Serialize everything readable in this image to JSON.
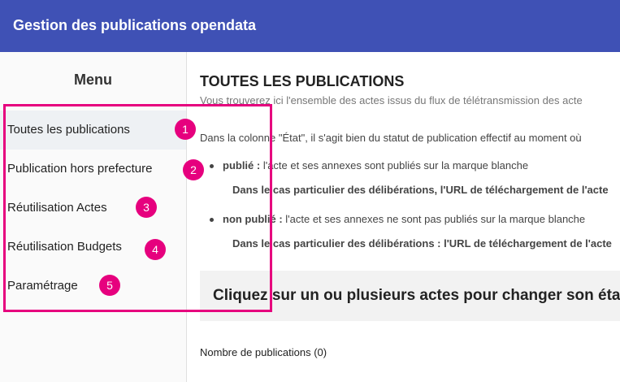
{
  "header": {
    "title": "Gestion des publications opendata"
  },
  "menu": {
    "title": "Menu",
    "items": [
      {
        "label": "Toutes les publications",
        "badge": 1
      },
      {
        "label": "Publication hors prefecture",
        "badge": 2
      },
      {
        "label": "Réutilisation Actes",
        "badge": 3
      },
      {
        "label": "Réutilisation Budgets",
        "badge": 4
      },
      {
        "label": "Paramétrage",
        "badge": 5
      }
    ]
  },
  "main": {
    "title": "TOUTES LES PUBLICATIONS",
    "intro": "Vous trouverez ici l'ensemble des actes issus du flux de télétransmission des acte",
    "state_intro": "Dans la colonne \"État\", il s'agit bien du statut de publication effectif au moment où",
    "bullets": [
      {
        "term": "publié :",
        "text": " l'acte et ses annexes sont publiés sur la marque blanche",
        "note": "Dans le cas particulier des délibérations, l'URL de téléchargement de l'acte"
      },
      {
        "term": "non publié :",
        "text": " l'acte et ses annexes ne sont pas publiés sur la marque blanche",
        "note": "Dans le cas particulier des délibérations : l'URL de téléchargement de l'acte"
      }
    ],
    "action": "Cliquez sur un ou plusieurs actes pour changer son éta",
    "count": "Nombre de publications (0)"
  }
}
